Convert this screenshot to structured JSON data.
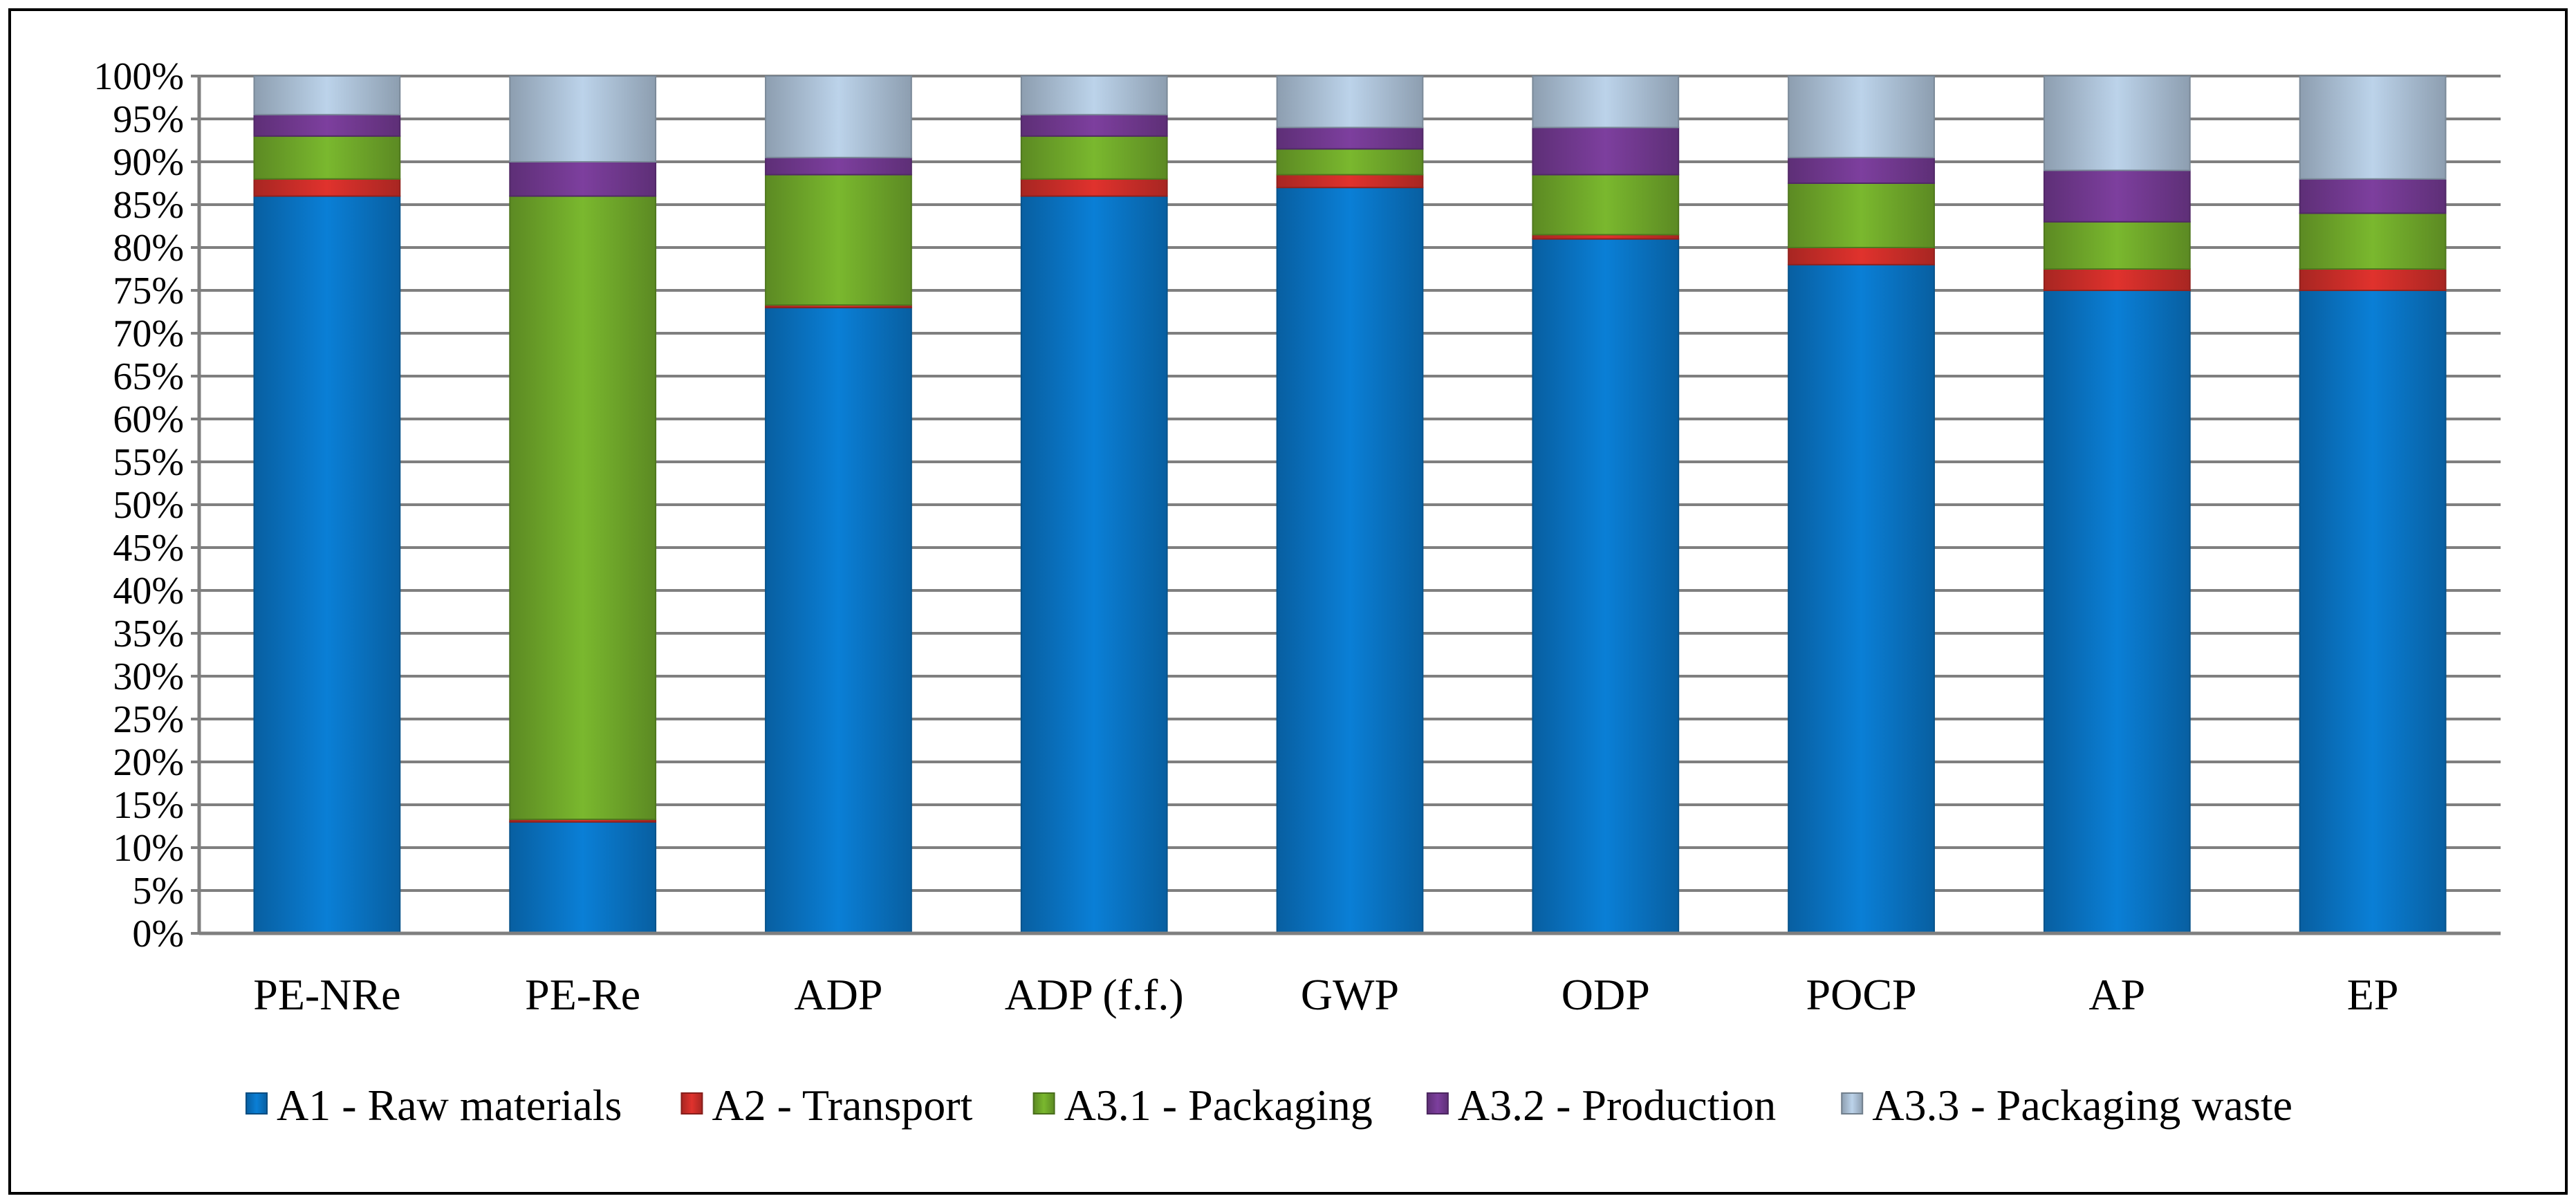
{
  "chart_data": {
    "type": "bar",
    "stacked": true,
    "title": "",
    "xlabel": "",
    "ylabel": "",
    "ylim": [
      0,
      100
    ],
    "grid": true,
    "legend_position": "bottom",
    "categories": [
      "PE-NRe",
      "PE-Re",
      "ADP",
      "ADP (f.f.)",
      "GWP",
      "ODP",
      "POCP",
      "AP",
      "EP"
    ],
    "y_ticks": [
      "0%",
      "5%",
      "10%",
      "15%",
      "20%",
      "25%",
      "30%",
      "35%",
      "40%",
      "45%",
      "50%",
      "55%",
      "60%",
      "65%",
      "70%",
      "75%",
      "80%",
      "85%",
      "90%",
      "95%",
      "100%"
    ],
    "series": [
      {
        "name": "A1 - Raw materials",
        "color": "#0a7fd6",
        "values": [
          86,
          13,
          73,
          86,
          87,
          81,
          78,
          75,
          75
        ]
      },
      {
        "name": "A2 - Transport",
        "color": "#e0322d",
        "values": [
          2,
          0.3,
          0.3,
          2,
          1.5,
          0.5,
          2,
          2.5,
          2.5
        ]
      },
      {
        "name": "A3.1 - Packaging",
        "color": "#7ab82e",
        "values": [
          5,
          72.7,
          15.2,
          5,
          3,
          7,
          7.5,
          5.5,
          6.5
        ]
      },
      {
        "name": "A3.2 - Production",
        "color": "#7d3f9e",
        "values": [
          2.5,
          4,
          2,
          2.5,
          2.5,
          5.5,
          3,
          6,
          4
        ]
      },
      {
        "name": "A3.3 - Packaging waste",
        "color": "#bcd3ea",
        "values": [
          4.5,
          10,
          9.5,
          4.5,
          6,
          6,
          9.5,
          11,
          12
        ]
      }
    ]
  }
}
